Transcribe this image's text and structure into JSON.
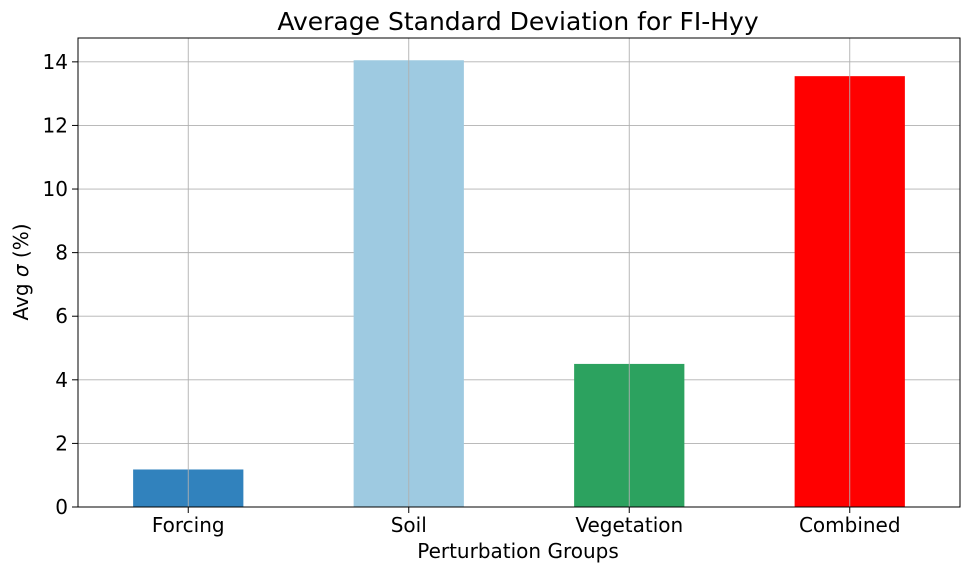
{
  "chart_data": {
    "type": "bar",
    "title": "Average Standard Deviation for FI-Hyy",
    "xlabel": "Perturbation Groups",
    "ylabel_prefix": "Avg ",
    "ylabel_symbol": "σ",
    "ylabel_suffix": " (%)",
    "categories": [
      "Forcing",
      "Soil",
      "Vegetation",
      "Combined"
    ],
    "values": [
      1.18,
      14.05,
      4.5,
      13.55
    ],
    "colors": [
      "#3182bd",
      "#9ecae1",
      "#2ca25f",
      "#ff0000"
    ],
    "ylim": [
      0,
      14.75
    ],
    "yticks": [
      0,
      2,
      4,
      6,
      8,
      10,
      12,
      14
    ],
    "grid": true
  }
}
